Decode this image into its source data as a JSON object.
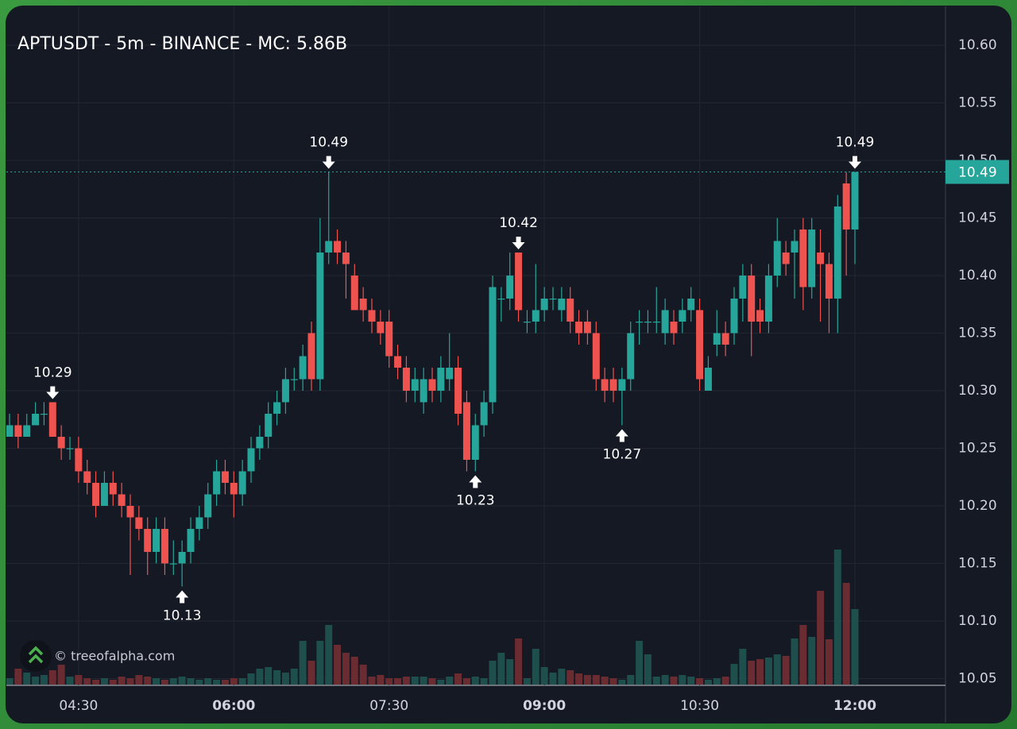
{
  "chart_data": {
    "type": "candlestick",
    "title": "APTUSDT - 5m - BINANCE - MC: 5.86B",
    "watermark": "© treeofalpha.com",
    "x": [
      "03:50",
      "03:55",
      "04:00",
      "04:05",
      "04:10",
      "04:15",
      "04:20",
      "04:25",
      "04:30",
      "04:35",
      "04:40",
      "04:45",
      "04:50",
      "04:55",
      "05:00",
      "05:05",
      "05:10",
      "05:15",
      "05:20",
      "05:25",
      "05:30",
      "05:35",
      "05:40",
      "05:45",
      "05:50",
      "05:55",
      "06:00",
      "06:05",
      "06:10",
      "06:15",
      "06:20",
      "06:25",
      "06:30",
      "06:35",
      "06:40",
      "06:45",
      "06:50",
      "06:55",
      "07:00",
      "07:05",
      "07:10",
      "07:15",
      "07:20",
      "07:25",
      "07:30",
      "07:35",
      "07:40",
      "07:45",
      "07:50",
      "07:55",
      "08:00",
      "08:05",
      "08:10",
      "08:15",
      "08:20",
      "08:25",
      "08:30",
      "08:35",
      "08:40",
      "08:45",
      "08:50",
      "08:55",
      "09:00",
      "09:05",
      "09:10",
      "09:15",
      "09:20",
      "09:25",
      "09:30",
      "09:35",
      "09:40",
      "09:45",
      "09:50",
      "09:55",
      "10:00",
      "10:05",
      "10:10",
      "10:15",
      "10:20",
      "10:25",
      "10:30",
      "10:35",
      "10:40",
      "10:45",
      "10:50",
      "10:55",
      "11:00",
      "11:05",
      "11:10",
      "11:15",
      "11:20",
      "11:25",
      "11:30",
      "11:35",
      "11:40",
      "11:45",
      "11:50",
      "11:55",
      "12:00"
    ],
    "open": [
      10.26,
      10.27,
      10.26,
      10.27,
      10.28,
      10.29,
      10.26,
      10.25,
      10.25,
      10.23,
      10.22,
      10.2,
      10.22,
      10.21,
      10.2,
      10.19,
      10.18,
      10.16,
      10.18,
      10.15,
      10.15,
      10.16,
      10.18,
      10.19,
      10.21,
      10.23,
      10.22,
      10.21,
      10.23,
      10.25,
      10.26,
      10.28,
      10.29,
      10.31,
      10.31,
      10.35,
      10.31,
      10.42,
      10.43,
      10.42,
      10.4,
      10.38,
      10.37,
      10.36,
      10.36,
      10.33,
      10.32,
      10.3,
      10.29,
      10.31,
      10.3,
      10.31,
      10.32,
      10.29,
      10.24,
      10.27,
      10.29,
      10.38,
      10.38,
      10.42,
      10.36,
      10.36,
      10.37,
      10.38,
      10.37,
      10.38,
      10.36,
      10.36,
      10.35,
      10.31,
      10.31,
      10.3,
      10.31,
      10.36,
      10.36,
      10.36,
      10.35,
      10.36,
      10.36,
      10.37,
      10.37,
      10.3,
      10.34,
      10.35,
      10.35,
      10.38,
      10.4,
      10.37,
      10.36,
      10.4,
      10.42,
      10.42,
      10.44,
      10.39,
      10.42,
      10.41,
      10.38,
      10.48,
      10.44
    ],
    "high": [
      10.28,
      10.28,
      10.28,
      10.29,
      10.29,
      10.29,
      10.27,
      10.26,
      10.26,
      10.24,
      10.23,
      10.23,
      10.23,
      10.22,
      10.21,
      10.2,
      10.19,
      10.19,
      10.19,
      10.17,
      10.17,
      10.19,
      10.2,
      10.22,
      10.24,
      10.24,
      10.23,
      10.24,
      10.26,
      10.27,
      10.29,
      10.3,
      10.32,
      10.32,
      10.34,
      10.36,
      10.45,
      10.49,
      10.44,
      10.43,
      10.41,
      10.39,
      10.38,
      10.37,
      10.37,
      10.34,
      10.33,
      10.32,
      10.32,
      10.32,
      10.33,
      10.35,
      10.33,
      10.3,
      10.28,
      10.3,
      10.4,
      10.39,
      10.42,
      10.42,
      10.37,
      10.41,
      10.39,
      10.39,
      10.39,
      10.39,
      10.37,
      10.37,
      10.36,
      10.32,
      10.32,
      10.32,
      10.36,
      10.37,
      10.37,
      10.39,
      10.38,
      10.37,
      10.38,
      10.39,
      10.38,
      10.33,
      10.37,
      10.36,
      10.39,
      10.41,
      10.41,
      10.38,
      10.41,
      10.45,
      10.43,
      10.44,
      10.45,
      10.45,
      10.44,
      10.42,
      10.47,
      10.49,
      10.49
    ],
    "low": [
      10.26,
      10.25,
      10.26,
      10.27,
      10.27,
      10.26,
      10.24,
      10.24,
      10.22,
      10.21,
      10.19,
      10.2,
      10.2,
      10.19,
      10.14,
      10.17,
      10.14,
      10.15,
      10.14,
      10.14,
      10.13,
      10.15,
      10.17,
      10.18,
      10.2,
      10.21,
      10.19,
      10.2,
      10.22,
      10.24,
      10.25,
      10.27,
      10.28,
      10.3,
      10.3,
      10.3,
      10.3,
      10.41,
      10.41,
      10.38,
      10.37,
      10.36,
      10.35,
      10.34,
      10.32,
      10.31,
      10.29,
      10.29,
      10.28,
      10.29,
      10.29,
      10.3,
      10.27,
      10.23,
      10.23,
      10.26,
      10.28,
      10.36,
      10.37,
      10.36,
      10.35,
      10.35,
      10.36,
      10.37,
      10.36,
      10.35,
      10.34,
      10.34,
      10.3,
      10.29,
      10.29,
      10.27,
      10.3,
      10.34,
      10.35,
      10.35,
      10.34,
      10.34,
      10.35,
      10.36,
      10.3,
      10.3,
      10.33,
      10.33,
      10.34,
      10.36,
      10.33,
      10.35,
      10.35,
      10.39,
      10.4,
      10.38,
      10.37,
      10.38,
      10.36,
      10.35,
      10.35,
      10.4,
      10.41
    ],
    "close": [
      10.27,
      10.26,
      10.27,
      10.28,
      10.28,
      10.26,
      10.25,
      10.25,
      10.23,
      10.22,
      10.2,
      10.22,
      10.21,
      10.2,
      10.19,
      10.18,
      10.16,
      10.18,
      10.15,
      10.15,
      10.16,
      10.18,
      10.19,
      10.21,
      10.23,
      10.22,
      10.21,
      10.23,
      10.25,
      10.26,
      10.28,
      10.29,
      10.31,
      10.31,
      10.33,
      10.31,
      10.42,
      10.43,
      10.42,
      10.41,
      10.37,
      10.37,
      10.36,
      10.35,
      10.33,
      10.32,
      10.3,
      10.31,
      10.31,
      10.3,
      10.32,
      10.32,
      10.28,
      10.24,
      10.27,
      10.29,
      10.39,
      10.38,
      10.4,
      10.37,
      10.36,
      10.37,
      10.38,
      10.38,
      10.38,
      10.36,
      10.35,
      10.35,
      10.31,
      10.3,
      10.3,
      10.31,
      10.35,
      10.36,
      10.36,
      10.36,
      10.37,
      10.35,
      10.37,
      10.38,
      10.31,
      10.32,
      10.35,
      10.34,
      10.38,
      10.4,
      10.36,
      10.36,
      10.4,
      10.43,
      10.41,
      10.43,
      10.39,
      10.44,
      10.41,
      10.38,
      10.46,
      10.44,
      10.49
    ],
    "volume": [
      8,
      20,
      15,
      10,
      12,
      18,
      25,
      10,
      12,
      8,
      6,
      8,
      6,
      10,
      8,
      12,
      10,
      8,
      6,
      8,
      10,
      8,
      6,
      8,
      6,
      6,
      8,
      8,
      14,
      20,
      22,
      18,
      15,
      20,
      55,
      30,
      55,
      75,
      50,
      40,
      35,
      25,
      10,
      12,
      8,
      8,
      10,
      10,
      10,
      8,
      6,
      10,
      14,
      8,
      10,
      8,
      30,
      40,
      32,
      58,
      8,
      45,
      22,
      15,
      20,
      18,
      14,
      12,
      12,
      10,
      8,
      6,
      12,
      55,
      38,
      10,
      12,
      10,
      12,
      10,
      8,
      6,
      8,
      10,
      26,
      45,
      30,
      32,
      34,
      38,
      36,
      58,
      75,
      60,
      118,
      57,
      170,
      128,
      95
    ],
    "up_color": "#26a69a",
    "down_color": "#ef5350",
    "up_volume_color": "#1e4f4c",
    "down_volume_color": "#6a2b31",
    "ylim": [
      10.04,
      10.64
    ],
    "yticks": [
      10.05,
      {
        "value": 10.1,
        "label": "10.10"
      },
      10.15,
      {
        "value": 10.2,
        "label": "10.20"
      },
      10.25,
      {
        "value": 10.3,
        "label": "10.30"
      },
      10.35,
      {
        "value": 10.4,
        "label": "10.40"
      },
      10.45,
      {
        "value": 10.5,
        "label": "10.50"
      },
      10.55,
      {
        "value": 10.6,
        "label": "10.60"
      }
    ],
    "xticks": [
      "04:30",
      "06:00",
      "07:30",
      "09:00",
      "10:30",
      "12:00"
    ],
    "xticks_bold": [
      false,
      true,
      false,
      true,
      false,
      true
    ],
    "grid": true,
    "last_price": 10.49,
    "annotations": [
      {
        "x": "04:15",
        "value": 10.29,
        "kind": "high"
      },
      {
        "x": "05:30",
        "value": 10.13,
        "kind": "low"
      },
      {
        "x": "06:55",
        "value": 10.49,
        "kind": "high"
      },
      {
        "x": "08:20",
        "value": 10.23,
        "kind": "low"
      },
      {
        "x": "08:45",
        "value": 10.42,
        "kind": "high"
      },
      {
        "x": "09:45",
        "value": 10.27,
        "kind": "low"
      },
      {
        "x": "12:00",
        "value": 10.49,
        "kind": "high"
      }
    ]
  }
}
